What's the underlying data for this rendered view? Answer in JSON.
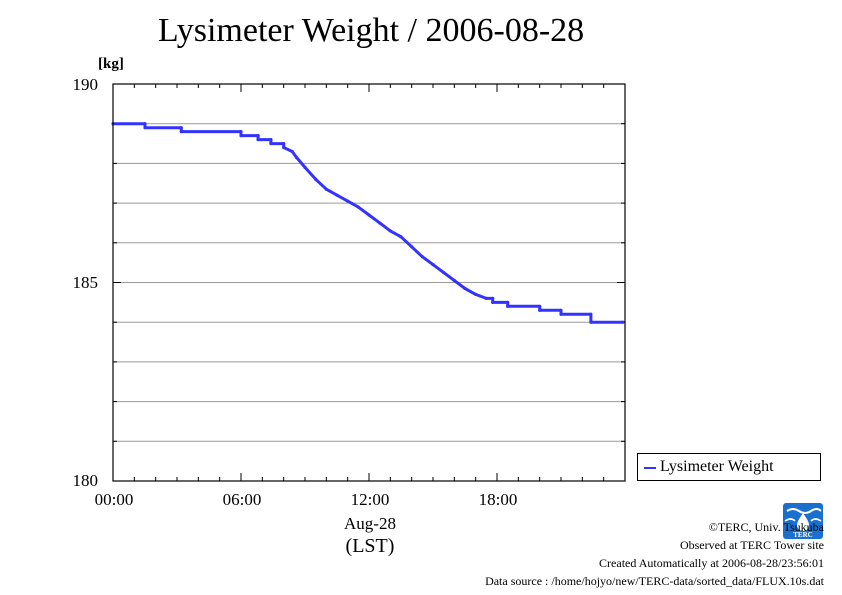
{
  "chart_data": {
    "type": "line",
    "title": "Lysimeter Weight / 2006-08-28",
    "ylabel": "[kg]",
    "xlabel": "Aug-28",
    "xlabel2": "(LST)",
    "ylim": [
      180,
      190
    ],
    "xlim": [
      0,
      24
    ],
    "y_ticks": [
      {
        "value": 180,
        "label": "180"
      },
      {
        "value": 185,
        "label": "185"
      },
      {
        "value": 190,
        "label": "190"
      }
    ],
    "y_minor_ticks": [
      181,
      182,
      183,
      184,
      186,
      187,
      188,
      189
    ],
    "x_ticks": [
      {
        "value": 0,
        "label": "00:00"
      },
      {
        "value": 6,
        "label": "06:00"
      },
      {
        "value": 12,
        "label": "12:00"
      },
      {
        "value": 18,
        "label": "18:00"
      }
    ],
    "grid": true,
    "legend_position": "right, outside plot area",
    "series": [
      {
        "name": "Lysimeter Weight",
        "color": "#3333ff",
        "x": [
          0,
          1.5,
          1.5,
          3.2,
          3.2,
          6.0,
          6.0,
          6.8,
          6.8,
          7.4,
          7.4,
          8.0,
          8.0,
          8.4,
          8.6,
          9.0,
          9.5,
          10.0,
          10.5,
          11.0,
          11.5,
          12.0,
          12.5,
          13.0,
          13.5,
          14.0,
          14.5,
          15.0,
          15.5,
          16.0,
          16.5,
          17.0,
          17.5,
          17.8,
          17.8,
          18.5,
          18.5,
          20.0,
          20.0,
          21.0,
          21.0,
          22.4,
          22.4,
          23.9
        ],
        "y": [
          189.0,
          189.0,
          188.9,
          188.9,
          188.8,
          188.8,
          188.7,
          188.7,
          188.6,
          188.6,
          188.5,
          188.5,
          188.4,
          188.3,
          188.15,
          187.9,
          187.6,
          187.35,
          187.2,
          187.05,
          186.9,
          186.7,
          186.5,
          186.3,
          186.15,
          185.9,
          185.65,
          185.45,
          185.25,
          185.05,
          184.85,
          184.7,
          184.6,
          184.6,
          184.5,
          184.5,
          184.4,
          184.4,
          184.3,
          184.3,
          184.2,
          184.2,
          184.0,
          184.0
        ]
      }
    ]
  },
  "legend": {
    "label": "Lysimeter Weight"
  },
  "credits": {
    "line1": "©TERC, Univ. Tsukuba",
    "line2": "Observed at TERC Tower site",
    "line3": "Created Automatically at 2006-08-28/23:56:01",
    "line4": "Data source : /home/hojyo/new/TERC-data/sorted_data/FLUX.10s.dat"
  },
  "logo": {
    "text": "TERC",
    "color": "#1a6fcf"
  }
}
